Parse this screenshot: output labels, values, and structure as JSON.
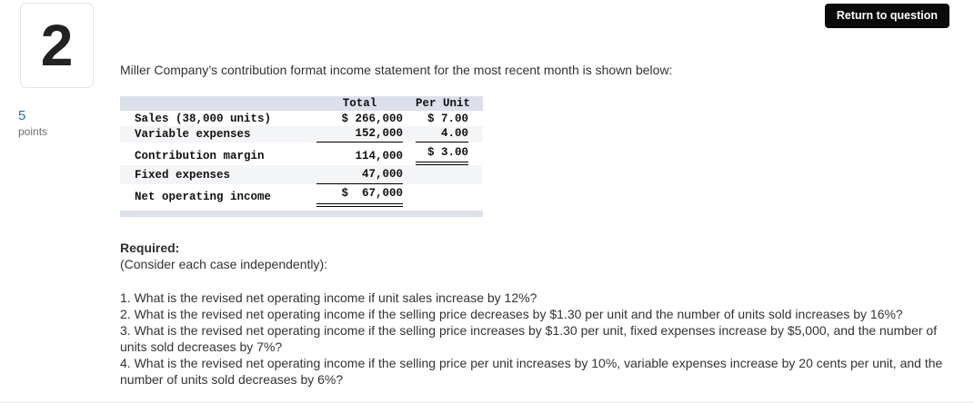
{
  "header": {
    "return_button_label": "Return to question"
  },
  "sidebar": {
    "question_number": "2",
    "points_value": "5",
    "points_label": "points"
  },
  "main": {
    "intro": "Miller Company’s contribution format income statement for the most recent month is shown below:",
    "required_label": "Required:",
    "required_note": "(Consider each case independently):",
    "questions": [
      "1. What is the revised net operating income if unit sales increase by 12%?",
      "2. What is the revised net operating income if the selling price decreases by $1.30 per unit and the number of units sold increases by 16%?",
      "3. What is the revised net operating income if the selling price increases by $1.30 per unit, fixed expenses increase by $5,000, and the number of units sold decreases by 7%?",
      "4. What is the revised net operating income if the selling price per unit increases by 10%, variable expenses increase by 20 cents per unit, and the number of units sold decreases by 6%?"
    ]
  },
  "statement": {
    "columns": [
      "Total",
      "Per Unit"
    ],
    "rows": [
      {
        "label": "Sales (38,000 units)",
        "total": "$ 266,000",
        "per_unit": "$ 7.00",
        "total_rule": "none",
        "per_unit_rule": "none"
      },
      {
        "label": "Variable expenses",
        "total": "152,000",
        "per_unit": "4.00",
        "total_rule": "single",
        "per_unit_rule": "single"
      },
      {
        "label": "Contribution margin",
        "total": "114,000",
        "per_unit": "$ 3.00",
        "total_rule": "none",
        "per_unit_rule": "double"
      },
      {
        "label": "Fixed expenses",
        "total": "47,000",
        "per_unit": "",
        "total_rule": "single",
        "per_unit_rule": "none"
      },
      {
        "label": "Net operating income",
        "total": "$  67,000",
        "per_unit": "",
        "total_rule": "double",
        "per_unit_rule": "none"
      }
    ]
  },
  "colors": {
    "button_bg": "#0a0a0a",
    "button_text": "#ffffff",
    "table_band": "#dbe0eb",
    "table_shade": "#f4f5f7",
    "points_accent": "#2b6cb0"
  }
}
